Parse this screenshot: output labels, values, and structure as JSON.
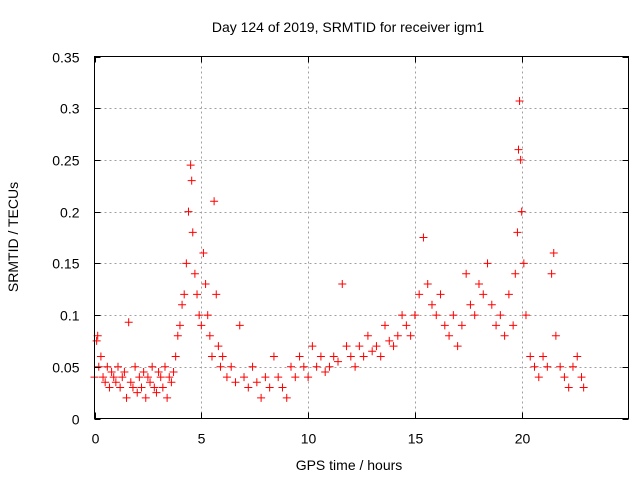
{
  "chart_data": {
    "type": "scatter",
    "title": "Day 124 of 2019, SRMTID for receiver igm1",
    "xlabel": "GPS time / hours",
    "ylabel": "SRMTID / TECUs",
    "xlim": [
      0,
      25
    ],
    "ylim": [
      0,
      0.35
    ],
    "x_ticks": [
      0,
      5,
      10,
      15,
      20
    ],
    "x_tick_labels": [
      "0",
      "5",
      "10",
      "15",
      "20"
    ],
    "y_ticks": [
      0,
      0.05,
      0.1,
      0.15,
      0.2,
      0.25,
      0.3,
      0.35
    ],
    "y_tick_labels": [
      "0",
      "0.05",
      "0.1",
      "0.15",
      "0.2",
      "0.25",
      "0.3",
      "0.35"
    ],
    "grid": true,
    "marker": "plus",
    "color": "#ff0000",
    "series": [
      {
        "name": "SRMTID igm1",
        "x": [
          0.0,
          0.1,
          0.15,
          0.2,
          0.3,
          0.4,
          0.5,
          0.6,
          0.7,
          0.8,
          0.9,
          1.0,
          1.1,
          1.2,
          1.3,
          1.4,
          1.5,
          1.6,
          1.7,
          1.8,
          1.9,
          2.0,
          2.1,
          2.2,
          2.3,
          2.4,
          2.5,
          2.6,
          2.7,
          2.8,
          2.9,
          3.0,
          3.1,
          3.2,
          3.3,
          3.4,
          3.5,
          3.6,
          3.7,
          3.8,
          3.9,
          4.0,
          4.1,
          4.2,
          4.3,
          4.4,
          4.5,
          4.55,
          4.6,
          4.7,
          4.8,
          4.9,
          5.0,
          5.1,
          5.2,
          5.3,
          5.4,
          5.5,
          5.6,
          5.7,
          5.8,
          5.9,
          6.0,
          6.2,
          6.4,
          6.6,
          6.8,
          7.0,
          7.2,
          7.4,
          7.6,
          7.8,
          8.0,
          8.2,
          8.4,
          8.6,
          8.8,
          9.0,
          9.2,
          9.4,
          9.6,
          9.8,
          10.0,
          10.2,
          10.4,
          10.6,
          10.8,
          11.0,
          11.2,
          11.4,
          11.6,
          11.8,
          12.0,
          12.2,
          12.4,
          12.6,
          12.8,
          13.0,
          13.2,
          13.4,
          13.6,
          13.8,
          14.0,
          14.2,
          14.4,
          14.6,
          14.8,
          15.0,
          15.2,
          15.4,
          15.6,
          15.8,
          16.0,
          16.2,
          16.4,
          16.6,
          16.8,
          17.0,
          17.2,
          17.4,
          17.6,
          17.8,
          18.0,
          18.2,
          18.4,
          18.6,
          18.8,
          19.0,
          19.2,
          19.4,
          19.6,
          19.7,
          19.8,
          19.85,
          19.9,
          19.95,
          20.0,
          20.1,
          20.2,
          20.4,
          20.6,
          20.8,
          21.0,
          21.2,
          21.4,
          21.5,
          21.6,
          21.8,
          22.0,
          22.2,
          22.4,
          22.6,
          22.8,
          22.9
        ],
        "y": [
          0.04,
          0.075,
          0.08,
          0.05,
          0.06,
          0.04,
          0.035,
          0.05,
          0.03,
          0.045,
          0.04,
          0.035,
          0.05,
          0.03,
          0.04,
          0.045,
          0.02,
          0.093,
          0.035,
          0.03,
          0.05,
          0.025,
          0.04,
          0.03,
          0.045,
          0.02,
          0.04,
          0.035,
          0.05,
          0.03,
          0.025,
          0.045,
          0.04,
          0.03,
          0.05,
          0.02,
          0.04,
          0.035,
          0.045,
          0.06,
          0.08,
          0.09,
          0.11,
          0.12,
          0.15,
          0.2,
          0.245,
          0.23,
          0.18,
          0.14,
          0.12,
          0.1,
          0.09,
          0.16,
          0.13,
          0.1,
          0.08,
          0.06,
          0.21,
          0.12,
          0.07,
          0.05,
          0.06,
          0.04,
          0.05,
          0.035,
          0.09,
          0.04,
          0.03,
          0.05,
          0.035,
          0.02,
          0.04,
          0.03,
          0.06,
          0.04,
          0.03,
          0.02,
          0.05,
          0.04,
          0.06,
          0.05,
          0.04,
          0.07,
          0.05,
          0.06,
          0.045,
          0.05,
          0.06,
          0.055,
          0.13,
          0.07,
          0.06,
          0.05,
          0.07,
          0.06,
          0.08,
          0.065,
          0.07,
          0.06,
          0.09,
          0.075,
          0.07,
          0.08,
          0.1,
          0.09,
          0.08,
          0.1,
          0.12,
          0.175,
          0.13,
          0.11,
          0.1,
          0.12,
          0.09,
          0.08,
          0.1,
          0.07,
          0.09,
          0.14,
          0.11,
          0.1,
          0.13,
          0.12,
          0.15,
          0.11,
          0.09,
          0.1,
          0.08,
          0.12,
          0.09,
          0.14,
          0.18,
          0.26,
          0.307,
          0.25,
          0.2,
          0.15,
          0.1,
          0.06,
          0.05,
          0.04,
          0.06,
          0.05,
          0.14,
          0.16,
          0.08,
          0.05,
          0.04,
          0.03,
          0.05,
          0.06,
          0.04,
          0.03
        ]
      }
    ]
  }
}
